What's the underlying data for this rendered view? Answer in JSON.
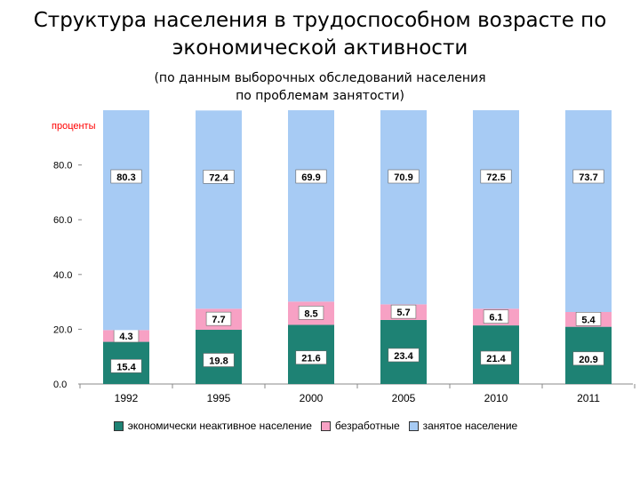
{
  "title_line1": "Структура населения в трудоспособном возрасте по",
  "title_line2": "экономической активности",
  "subtitle_line1": "(по данным выборочных обследований населения",
  "subtitle_line2": "по проблемам занятости)",
  "chart_data": {
    "type": "bar",
    "stacked": true,
    "ylabel": "проценты",
    "ylim": [
      0,
      100
    ],
    "yticks": [
      "0.0",
      "20.0",
      "40.0",
      "60.0",
      "80.0"
    ],
    "categories": [
      "1992",
      "1995",
      "2000",
      "2005",
      "2010",
      "2011"
    ],
    "series": [
      {
        "name": "экономически неактивное население",
        "color": "#1e8274",
        "values": [
          15.4,
          19.8,
          21.6,
          23.4,
          21.4,
          20.9
        ]
      },
      {
        "name": "безработные",
        "color": "#f7a1c4",
        "values": [
          4.3,
          7.7,
          8.5,
          5.7,
          6.1,
          5.4
        ]
      },
      {
        "name": "занятое население",
        "color": "#a7cbf4",
        "values": [
          80.3,
          72.4,
          69.9,
          70.9,
          72.5,
          73.7
        ]
      }
    ],
    "legend_position": "bottom"
  }
}
